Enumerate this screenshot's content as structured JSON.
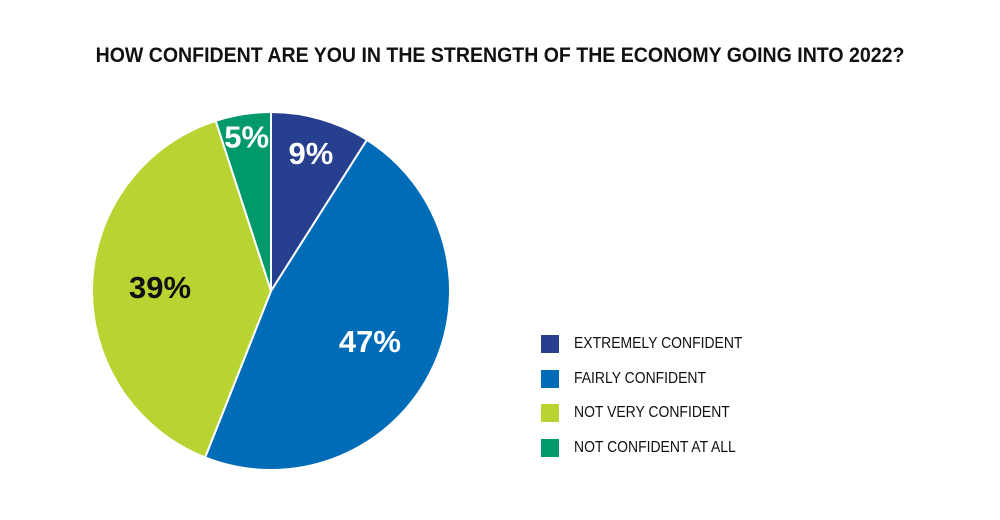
{
  "chart_data": {
    "type": "pie",
    "title": "HOW CONFIDENT ARE YOU IN THE STRENGTH OF THE ECONOMY GOING INTO 2022?",
    "slices": [
      {
        "label": "EXTREMELY CONFIDENT",
        "value": 9,
        "display": "9%",
        "color": "#263f8f",
        "label_color": "#ffffff"
      },
      {
        "label": "FAIRLY CONFIDENT",
        "value": 47,
        "display": "47%",
        "color": "#006cb7",
        "label_color": "#ffffff"
      },
      {
        "label": "NOT VERY CONFIDENT",
        "value": 39,
        "display": "39%",
        "color": "#b7d432",
        "label_color": "#111111"
      },
      {
        "label": "NOT CONFIDENT AT ALL",
        "value": 5,
        "display": "5%",
        "color": "#00996b",
        "label_color": "#ffffff"
      }
    ],
    "start_angle": "12 o'clock",
    "direction": "clockwise",
    "legend_position": "right"
  }
}
